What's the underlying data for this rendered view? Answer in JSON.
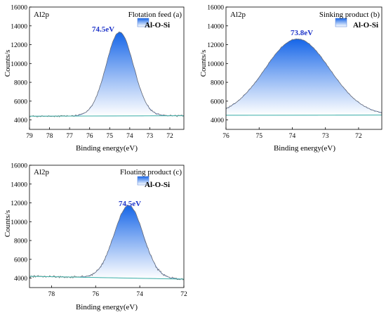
{
  "colors": {
    "fill_top": "#1565e8",
    "fill_bottom": "#ffffff",
    "baseline": "#3fb2a8",
    "raw_line": "#6b6b6b",
    "peak_label": "#1f35c9"
  },
  "chart_data": [
    {
      "type": "area",
      "panel": "a",
      "title": "Flotation feed (a)",
      "element_label": "Al2p",
      "xlabel": "Binding energy(eV)",
      "ylabel": "Counts/s",
      "xlim": [
        79,
        71.3
      ],
      "ylim": [
        3000,
        16000
      ],
      "x_reversed": true,
      "xticks": [
        "79",
        "78",
        "77",
        "76",
        "75",
        "74",
        "73",
        "72"
      ],
      "yticks": [
        "4000",
        "6000",
        "8000",
        "10000",
        "12000",
        "14000",
        "16000"
      ],
      "legend": [
        "Al-O-Si"
      ],
      "legend_position": "top-right",
      "peak_label": "74.5eV",
      "peak": {
        "name": "Al-O-Si",
        "center": 74.5,
        "height": 8900,
        "fwhm": 1.6
      },
      "background": {
        "x": [
          79,
          71.3
        ],
        "y": [
          4400,
          4450
        ]
      },
      "raw_noise": 160
    },
    {
      "type": "area",
      "panel": "b",
      "title": "Sinking product (b)",
      "element_label": "Al2p",
      "xlabel": "Binding energy(eV)",
      "ylabel": "Counts/s",
      "xlim": [
        76,
        71.3
      ],
      "ylim": [
        3000,
        16000
      ],
      "x_reversed": true,
      "xticks": [
        "76",
        "75",
        "74",
        "73",
        "72"
      ],
      "yticks": [
        "4000",
        "6000",
        "8000",
        "10000",
        "12000",
        "14000",
        "16000"
      ],
      "legend": [
        "Al-O-Si"
      ],
      "legend_position": "top-right",
      "peak_label": "73.8eV",
      "peak": {
        "name": "Al-O-Si",
        "center": 73.85,
        "height": 8100,
        "fwhm": 2.3
      },
      "background": {
        "x": [
          76,
          71.3
        ],
        "y": [
          4500,
          4520
        ]
      },
      "raw_noise": 110
    },
    {
      "type": "area",
      "panel": "c",
      "title": "Floating product (c)",
      "element_label": "Al2p",
      "xlabel": "Binding energy(eV)",
      "ylabel": "Counts/s",
      "xlim": [
        79,
        72
      ],
      "ylim": [
        3000,
        16000
      ],
      "x_reversed": true,
      "xticks": [
        "78",
        "76",
        "74",
        "72"
      ],
      "yticks": [
        "4000",
        "6000",
        "8000",
        "10000",
        "12000",
        "14000",
        "16000"
      ],
      "legend": [
        "Al-O-Si"
      ],
      "legend_position": "top-right",
      "peak_label": "74.5eV",
      "peak": {
        "name": "Al-O-Si",
        "center": 74.5,
        "height": 7700,
        "fwhm": 1.55
      },
      "background": {
        "x": [
          79,
          72
        ],
        "y": [
          4200,
          3900
        ]
      },
      "raw_noise": 220
    }
  ]
}
